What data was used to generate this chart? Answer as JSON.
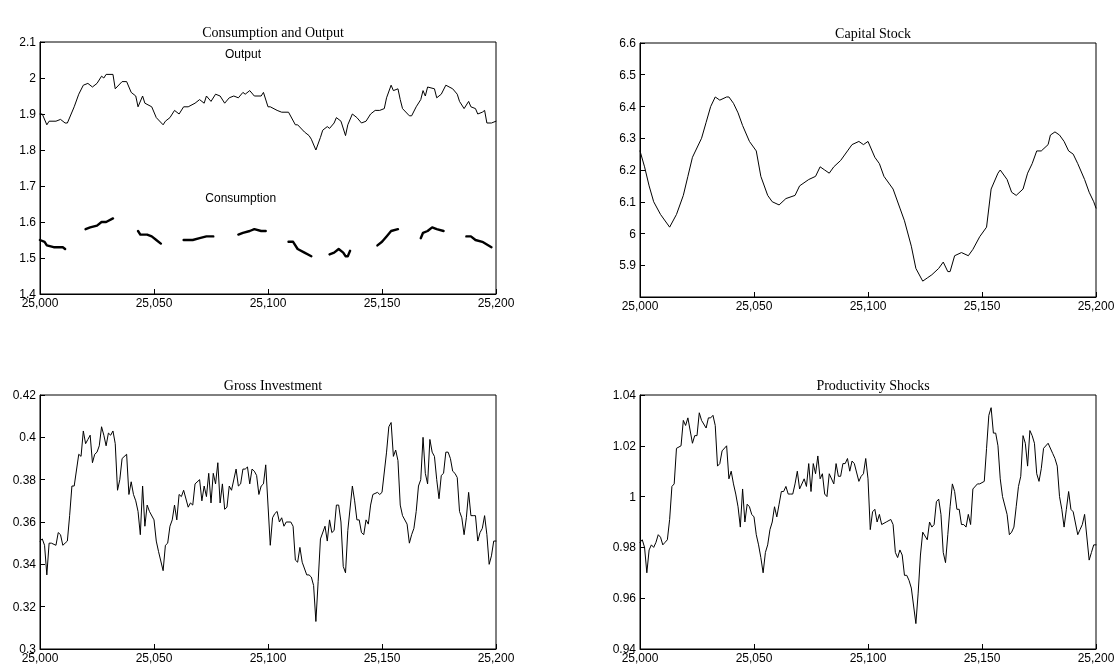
{
  "chart_data": [
    {
      "type": "line",
      "title": "Consumption and Output",
      "xlim": [
        25000,
        25200
      ],
      "xticks": [
        {
          "value": 25000,
          "label": "25,000"
        },
        {
          "value": 25050,
          "label": "25,050"
        },
        {
          "value": 25100,
          "label": "25,100"
        },
        {
          "value": 25150,
          "label": "25,150"
        },
        {
          "value": 25200,
          "label": "25,200"
        }
      ],
      "ylim": [
        1.4,
        2.1
      ],
      "yticks": [
        1.4,
        1.5,
        1.6,
        1.7,
        1.8,
        1.9,
        2,
        2.1
      ],
      "series": [
        {
          "name": "Output",
          "color": "#000000",
          "x": [
            25000,
            25001,
            25003,
            25004,
            25007,
            25009,
            25011,
            25012,
            25015,
            25017,
            25019,
            25021,
            25023,
            25025,
            25027,
            25028,
            25029,
            25032,
            25033,
            25036,
            25038,
            25040,
            25042,
            25043,
            25045,
            25046,
            25049,
            25051,
            25054,
            25055,
            25057,
            25059,
            25061,
            25063,
            25065,
            25068,
            25070,
            25072,
            25073,
            25075,
            25077,
            25079,
            25081,
            25083,
            25085,
            25087,
            25089,
            25090,
            25092,
            25094,
            25097,
            25098,
            25100,
            25101,
            25104,
            25106,
            25109,
            25112,
            25113,
            25116,
            25118,
            25119,
            25121,
            25123,
            25124,
            25126,
            25127,
            25129,
            25130,
            25132,
            25134,
            25135,
            25137,
            25139,
            25141,
            25143,
            25145,
            25147,
            25149,
            25151,
            25152,
            25154,
            25155,
            25157,
            25158,
            25159,
            25162,
            25163,
            25165,
            25167,
            25168,
            25169,
            25170,
            25173,
            25174,
            25176,
            25178,
            25181,
            25183,
            25184,
            25186,
            25188,
            25189,
            25191,
            25192,
            25194,
            25195,
            25196,
            25198,
            25200
          ],
          "values": [
            1.9,
            1.9,
            1.87,
            1.88,
            1.88,
            1.885,
            1.875,
            1.875,
            1.92,
            1.955,
            1.98,
            1.985,
            1.975,
            1.985,
            2.005,
            2.0,
            2.01,
            2.01,
            1.97,
            1.99,
            1.99,
            1.96,
            1.95,
            1.92,
            1.95,
            1.93,
            1.92,
            1.89,
            1.87,
            1.88,
            1.89,
            1.91,
            1.9,
            1.92,
            1.92,
            1.93,
            1.94,
            1.93,
            1.95,
            1.935,
            1.955,
            1.95,
            1.93,
            1.945,
            1.95,
            1.945,
            1.96,
            1.955,
            1.965,
            1.95,
            1.95,
            1.96,
            1.92,
            1.92,
            1.91,
            1.905,
            1.905,
            1.87,
            1.87,
            1.85,
            1.84,
            1.83,
            1.8,
            1.835,
            1.855,
            1.865,
            1.86,
            1.875,
            1.89,
            1.88,
            1.84,
            1.87,
            1.9,
            1.89,
            1.875,
            1.88,
            1.9,
            1.91,
            1.91,
            1.915,
            1.945,
            1.98,
            1.965,
            1.97,
            1.94,
            1.915,
            1.895,
            1.895,
            1.92,
            1.94,
            1.965,
            1.95,
            1.975,
            1.97,
            1.945,
            1.955,
            1.98,
            1.97,
            1.955,
            1.935,
            1.915,
            1.935,
            1.92,
            1.915,
            1.9,
            1.905,
            1.91,
            1.875,
            1.875,
            1.88
          ]
        },
        {
          "name": "Consumption",
          "color": "#000000",
          "x": [
            25000,
            25002,
            25003,
            25006,
            25010,
            25011,
            25015,
            25020,
            25022,
            25025,
            25027,
            25029,
            25032,
            25037,
            25043,
            25044,
            25047,
            25049,
            25051,
            25053,
            25058,
            25063,
            25067,
            25070,
            25073,
            25076,
            25081,
            25087,
            25089,
            25092,
            25094,
            25097,
            25099,
            25104,
            25109,
            25111,
            25113,
            25116,
            25119,
            25123,
            25127,
            25129,
            25131,
            25133,
            25134,
            25135,
            25136,
            25142,
            25148,
            25150,
            25152,
            25154,
            25157,
            25162,
            25167,
            25168,
            25170,
            25172,
            25174,
            25177,
            25182,
            25187,
            25189,
            25191,
            25194,
            25198
          ],
          "values": [
            1.55,
            1.545,
            1.535,
            1.53,
            1.53,
            1.525,
            null,
            1.58,
            1.585,
            1.59,
            1.6,
            1.6,
            1.61,
            null,
            1.575,
            1.565,
            1.565,
            1.56,
            1.55,
            1.54,
            null,
            1.55,
            1.55,
            1.555,
            1.56,
            1.56,
            null,
            1.565,
            1.57,
            1.575,
            1.58,
            1.575,
            1.575,
            null,
            1.545,
            1.545,
            1.525,
            1.515,
            1.505,
            null,
            1.51,
            1.515,
            1.525,
            1.515,
            1.505,
            1.505,
            1.52,
            null,
            1.535,
            1.545,
            1.56,
            1.575,
            1.58,
            null,
            1.555,
            1.57,
            1.575,
            1.585,
            1.58,
            1.575,
            null,
            1.56,
            1.56,
            1.55,
            1.545,
            1.53
          ]
        }
      ]
    },
    {
      "type": "line",
      "title": "Capital Stock",
      "xlim": [
        25000,
        25200
      ],
      "xticks": [
        {
          "value": 25000,
          "label": "25,000"
        },
        {
          "value": 25050,
          "label": "25,050"
        },
        {
          "value": 25100,
          "label": "25,100"
        },
        {
          "value": 25150,
          "label": "25,150"
        },
        {
          "value": 25200,
          "label": "25,200"
        }
      ],
      "ylim": [
        5.8,
        6.6
      ],
      "yticks": [
        5.9,
        6,
        6.1,
        6.2,
        6.3,
        6.4,
        6.5,
        6.6
      ],
      "series": [
        {
          "color": "#000000",
          "x": [
            25000,
            25002,
            25004,
            25006,
            25009,
            25012,
            25013,
            25016,
            25019,
            25021,
            25023,
            25027,
            25029,
            25031,
            25033,
            25035,
            25038,
            25039,
            25041,
            25043,
            25045,
            25048,
            25051,
            25053,
            25056,
            25058,
            25061,
            25064,
            25068,
            25070,
            25074,
            25077,
            25079,
            25081,
            25083,
            25085,
            25088,
            25091,
            25093,
            25096,
            25098,
            25100,
            25103,
            25105,
            25107,
            25111,
            25114,
            25116,
            25119,
            25121,
            25124,
            25126,
            25128,
            25131,
            25133,
            25135,
            25136,
            25138,
            25141,
            25144,
            25146,
            25149,
            25152,
            25154,
            25157,
            25158,
            25161,
            25163,
            25165,
            25168,
            25170,
            25172,
            25174,
            25176,
            25179,
            25180,
            25182,
            25184,
            25186,
            25188,
            25190,
            25192,
            25195,
            25197,
            25199,
            25200
          ],
          "values": [
            6.26,
            6.21,
            6.15,
            6.1,
            6.06,
            6.03,
            6.02,
            6.06,
            6.12,
            6.18,
            6.24,
            6.3,
            6.35,
            6.4,
            6.43,
            6.42,
            6.43,
            6.43,
            6.41,
            6.38,
            6.34,
            6.29,
            6.26,
            6.18,
            6.12,
            6.1,
            6.09,
            6.11,
            6.12,
            6.15,
            6.17,
            6.18,
            6.21,
            6.2,
            6.19,
            6.21,
            6.23,
            6.26,
            6.28,
            6.29,
            6.28,
            6.29,
            6.24,
            6.22,
            6.18,
            6.14,
            6.08,
            6.04,
            5.96,
            5.89,
            5.85,
            5.86,
            5.87,
            5.89,
            5.91,
            5.88,
            5.88,
            5.93,
            5.94,
            5.93,
            5.95,
            5.99,
            6.02,
            6.14,
            6.19,
            6.2,
            6.17,
            6.13,
            6.12,
            6.14,
            6.19,
            6.22,
            6.26,
            6.26,
            6.28,
            6.31,
            6.32,
            6.31,
            6.29,
            6.26,
            6.25,
            6.22,
            6.17,
            6.13,
            6.1,
            6.08
          ]
        }
      ]
    },
    {
      "type": "line",
      "title": "Gross Investment",
      "xlim": [
        25000,
        25200
      ],
      "xticks": [
        {
          "value": 25000,
          "label": "25,000"
        },
        {
          "value": 25050,
          "label": "25,050"
        },
        {
          "value": 25100,
          "label": "25,100"
        },
        {
          "value": 25150,
          "label": "25,150"
        },
        {
          "value": 25200,
          "label": "25,200"
        }
      ],
      "ylim": [
        0.3,
        0.42
      ],
      "yticks": [
        0.3,
        0.32,
        0.34,
        0.36,
        0.38,
        0.4,
        0.42
      ],
      "series": [
        {
          "color": "#000000",
          "x": [
            25000,
            25001,
            25002,
            25003,
            25004,
            25005,
            25007,
            25008,
            25009,
            25010,
            25011,
            25012,
            25013,
            25014,
            25015,
            25017,
            25018,
            25019,
            25020,
            25021,
            25022,
            25023,
            25024,
            25025,
            25026,
            25027,
            25028,
            25029,
            25030,
            25031,
            25032,
            25033,
            25034,
            25035,
            25036,
            25038,
            25039,
            25040,
            25041,
            25042,
            25043,
            25044,
            25045,
            25046,
            25047,
            25048,
            25050,
            25051,
            25052,
            25054,
            25055,
            25056,
            25057,
            25058,
            25059,
            25060,
            25061,
            25062,
            25063,
            25065,
            25066,
            25067,
            25068,
            25070,
            25071,
            25072,
            25073,
            25074,
            25075,
            25076,
            25077,
            25078,
            25079,
            25080,
            25081,
            25082,
            25083,
            25084,
            25086,
            25087,
            25088,
            25089,
            25090,
            25091,
            25092,
            25093,
            25094,
            25095,
            25096,
            25097,
            25098,
            25099,
            25101,
            25102,
            25103,
            25104,
            25105,
            25106,
            25107,
            25108,
            25110,
            25111,
            25112,
            25113,
            25114,
            25115,
            25117,
            25118,
            25119,
            25120,
            25121,
            25122,
            25123,
            25125,
            25126,
            25127,
            25128,
            25129,
            25130,
            25131,
            25132,
            25133,
            25134,
            25135,
            25137,
            25138,
            25139,
            25140,
            25141,
            25142,
            25143,
            25144,
            25145,
            25146,
            25148,
            25149,
            25150,
            25152,
            25153,
            25154,
            25155,
            25156,
            25157,
            25158,
            25159,
            25161,
            25162,
            25163,
            25164,
            25165,
            25166,
            25167,
            25168,
            25169,
            25170,
            25171,
            25172,
            25173,
            25174,
            25175,
            25176,
            25177,
            25178,
            25179,
            25180,
            25181,
            25182,
            25183,
            25184,
            25185,
            25186,
            25187,
            25188,
            25189,
            25190,
            25191,
            25192,
            25193,
            25194,
            25195,
            25196,
            25197,
            25198,
            25199,
            25200
          ],
          "values": [
            0.351,
            0.352,
            0.349,
            0.335,
            0.35,
            0.35,
            0.349,
            0.355,
            0.354,
            0.349,
            0.35,
            0.351,
            0.363,
            0.377,
            0.377,
            0.392,
            0.391,
            0.403,
            0.397,
            0.399,
            0.401,
            0.388,
            0.392,
            0.393,
            0.396,
            0.405,
            0.401,
            0.396,
            0.402,
            0.401,
            0.403,
            0.397,
            0.375,
            0.38,
            0.39,
            0.392,
            0.373,
            0.379,
            0.373,
            0.37,
            0.365,
            0.354,
            0.377,
            0.358,
            0.368,
            0.365,
            0.361,
            0.351,
            0.346,
            0.337,
            0.349,
            0.35,
            0.358,
            0.361,
            0.368,
            0.361,
            0.373,
            0.372,
            0.375,
            0.367,
            0.369,
            0.368,
            0.378,
            0.38,
            0.37,
            0.377,
            0.372,
            0.383,
            0.369,
            0.383,
            0.378,
            0.388,
            0.369,
            0.378,
            0.366,
            0.367,
            0.377,
            0.375,
            0.385,
            0.377,
            0.378,
            0.385,
            0.385,
            0.386,
            0.378,
            0.385,
            0.384,
            0.382,
            0.373,
            0.377,
            0.378,
            0.387,
            0.349,
            0.362,
            0.364,
            0.365,
            0.36,
            0.362,
            0.358,
            0.36,
            0.36,
            0.358,
            0.342,
            0.341,
            0.348,
            0.341,
            0.335,
            0.335,
            0.334,
            0.33,
            0.313,
            0.332,
            0.352,
            0.358,
            0.351,
            0.361,
            0.355,
            0.356,
            0.368,
            0.368,
            0.36,
            0.339,
            0.336,
            0.356,
            0.377,
            0.37,
            0.361,
            0.361,
            0.355,
            0.354,
            0.361,
            0.359,
            0.368,
            0.373,
            0.374,
            0.373,
            0.374,
            0.393,
            0.405,
            0.407,
            0.391,
            0.394,
            0.389,
            0.368,
            0.363,
            0.359,
            0.35,
            0.354,
            0.357,
            0.365,
            0.377,
            0.38,
            0.4,
            0.383,
            0.378,
            0.399,
            0.393,
            0.391,
            0.38,
            0.371,
            0.382,
            0.383,
            0.393,
            0.393,
            0.39,
            0.384,
            0.383,
            0.381,
            0.365,
            0.362,
            0.354,
            0.362,
            0.374,
            0.363,
            0.363,
            0.363,
            0.351,
            0.355,
            0.357,
            0.363,
            0.354,
            0.34,
            0.344,
            0.351,
            0.351
          ]
        }
      ]
    },
    {
      "type": "line",
      "title": "Productivity Shocks",
      "xlim": [
        25000,
        25200
      ],
      "xticks": [
        {
          "value": 25000,
          "label": "25,000"
        },
        {
          "value": 25050,
          "label": "25,050"
        },
        {
          "value": 25100,
          "label": "25,100"
        },
        {
          "value": 25150,
          "label": "25,150"
        },
        {
          "value": 25200,
          "label": "25,200"
        }
      ],
      "ylim": [
        0.94,
        1.04
      ],
      "yticks": [
        0.94,
        0.96,
        0.98,
        1,
        1.02,
        1.04
      ],
      "series": [
        {
          "color": "#000000",
          "x": [
            25000,
            25001,
            25002,
            25003,
            25004,
            25005,
            25006,
            25007,
            25008,
            25009,
            25010,
            25011,
            25012,
            25013,
            25014,
            25015,
            25016,
            25018,
            25019,
            25020,
            25021,
            25023,
            25024,
            25025,
            25026,
            25027,
            25029,
            25030,
            25031,
            25032,
            25033,
            25034,
            25035,
            25036,
            25038,
            25039,
            25040,
            25041,
            25042,
            25043,
            25044,
            25045,
            25046,
            25047,
            25048,
            25049,
            25050,
            25051,
            25052,
            25053,
            25054,
            25055,
            25056,
            25057,
            25058,
            25059,
            25060,
            25061,
            25062,
            25063,
            25064,
            25065,
            25066,
            25067,
            25068,
            25069,
            25070,
            25072,
            25073,
            25074,
            25075,
            25076,
            25077,
            25078,
            25079,
            25080,
            25081,
            25082,
            25083,
            25085,
            25086,
            25087,
            25088,
            25089,
            25090,
            25091,
            25092,
            25093,
            25094,
            25096,
            25097,
            25098,
            25099,
            25100,
            25101,
            25102,
            25103,
            25104,
            25105,
            25106,
            25108,
            25110,
            25111,
            25112,
            25113,
            25114,
            25115,
            25116,
            25117,
            25118,
            25119,
            25121,
            25122,
            25123,
            25124,
            25126,
            25127,
            25128,
            25129,
            25130,
            25131,
            25132,
            25133,
            25134,
            25135,
            25136,
            25137,
            25138,
            25139,
            25140,
            25141,
            25142,
            25143,
            25144,
            25145,
            25146,
            25148,
            25149,
            25151,
            25152,
            25153,
            25154,
            25155,
            25156,
            25157,
            25158,
            25159,
            25161,
            25162,
            25163,
            25164,
            25165,
            25166,
            25167,
            25168,
            25169,
            25170,
            25171,
            25172,
            25173,
            25174,
            25175,
            25176,
            25177,
            25179,
            25181,
            25182,
            25183,
            25184,
            25185,
            25186,
            25187,
            25188,
            25189,
            25190,
            25192,
            25193,
            25194,
            25195,
            25197,
            25198,
            25199,
            25200
          ],
          "values": [
            0.982,
            0.983,
            0.98,
            0.97,
            0.979,
            0.981,
            0.98,
            0.982,
            0.985,
            0.984,
            0.981,
            0.982,
            0.983,
            0.991,
            1.004,
            1.005,
            1.019,
            1.02,
            1.03,
            1.028,
            1.031,
            1.021,
            1.024,
            1.024,
            1.033,
            1.03,
            1.027,
            1.031,
            1.031,
            1.032,
            1.028,
            1.012,
            1.013,
            1.018,
            1.02,
            1.007,
            1.01,
            1.005,
            1.001,
            0.996,
            0.988,
            1.003,
            0.99,
            0.997,
            0.996,
            0.993,
            0.992,
            0.985,
            0.981,
            0.976,
            0.97,
            0.978,
            0.981,
            0.987,
            0.99,
            0.996,
            0.992,
            0.997,
            1.002,
            1.002,
            1.004,
            1.001,
            1.001,
            1.001,
            1.005,
            1.01,
            1.003,
            1.007,
            1.004,
            1.013,
            1.002,
            1.013,
            1.009,
            1.016,
            1.007,
            1.009,
            1.001,
            1.0,
            1.009,
            1.005,
            1.013,
            1.008,
            1.008,
            1.013,
            1.013,
            1.015,
            1.01,
            1.014,
            1.013,
            1.006,
            1.008,
            1.009,
            1.015,
            1.007,
            0.987,
            0.994,
            0.995,
            0.99,
            0.993,
            0.989,
            0.99,
            0.991,
            0.989,
            0.978,
            0.976,
            0.979,
            0.977,
            0.969,
            0.969,
            0.967,
            0.964,
            0.95,
            0.962,
            0.977,
            0.986,
            0.983,
            0.99,
            0.988,
            0.989,
            0.998,
            0.999,
            0.993,
            0.978,
            0.974,
            0.985,
            0.996,
            1.005,
            1.002,
            0.995,
            0.995,
            0.989,
            0.989,
            0.988,
            0.993,
            0.989,
            1.003,
            1.005,
            1.005,
            1.006,
            1.019,
            1.032,
            1.035,
            1.025,
            1.025,
            1.02,
            1.007,
            1.0,
            0.993,
            0.985,
            0.986,
            0.988,
            0.996,
            1.004,
            1.008,
            1.024,
            1.021,
            1.012,
            1.026,
            1.024,
            1.021,
            1.009,
            1.006,
            1.011,
            1.019,
            1.021,
            1.017,
            1.015,
            1.012,
            1.0,
            0.995,
            0.988,
            0.995,
            1.002,
            0.995,
            0.994,
            0.985,
            0.987,
            0.989,
            0.993,
            0.975,
            0.978,
            0.981,
            0.981
          ]
        }
      ]
    }
  ]
}
